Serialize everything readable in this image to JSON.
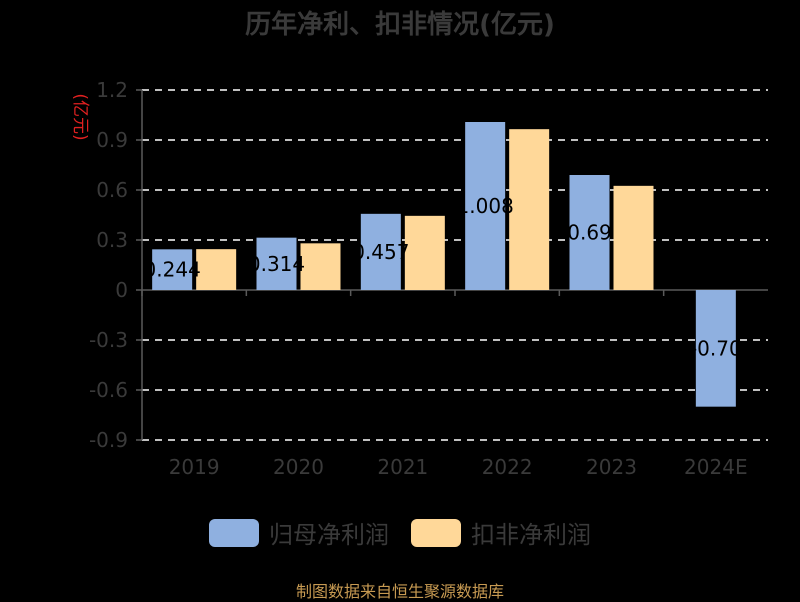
{
  "title": "历年净利、扣非情况(亿元)",
  "source": "制图数据来自恒生聚源数据库",
  "colors": {
    "series_1": "#8fb0e0",
    "series_2": "#ffd899",
    "grid": "#ffffff",
    "axis": "#5a5a5a",
    "unit": "#e02020"
  },
  "chart_data": {
    "type": "bar",
    "title": "历年净利、扣非情况(亿元)",
    "ylabel": "(亿元)",
    "xlabel": "",
    "categories": [
      "2019",
      "2020",
      "2021",
      "2022",
      "2023",
      "2024E"
    ],
    "ylim": [
      -0.9,
      1.2
    ],
    "yticks": [
      -0.9,
      -0.6,
      -0.3,
      0,
      0.3,
      0.6,
      0.9,
      1.2
    ],
    "ytick_labels": [
      "-0.9",
      "-0.6",
      "-0.3",
      "0",
      "0.3",
      "0.6",
      "0.9",
      "1.2"
    ],
    "grid": true,
    "legend_position": "bottom",
    "series": [
      {
        "name": "归母净利润",
        "values": [
          0.244,
          0.314,
          0.457,
          1.008,
          0.69,
          -0.7
        ],
        "data_labels": [
          "0.244",
          "0.314",
          "0.457",
          "1.008",
          "0.69",
          "-0.70"
        ]
      },
      {
        "name": "扣非净利润",
        "values": [
          0.245,
          0.28,
          0.445,
          0.965,
          0.625,
          null
        ]
      }
    ]
  }
}
